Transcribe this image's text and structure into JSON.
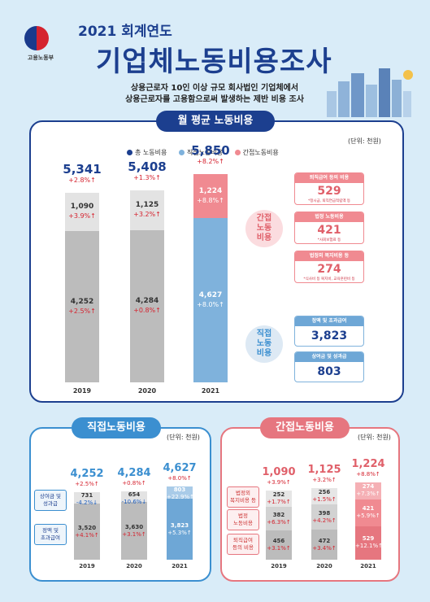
{
  "header": {
    "ministry": "고용노동부",
    "year_title": "2021 회계연도",
    "main_title": "기업체노동비용조사",
    "subtitle_line1": "상용근로자 10인 이상 규모 회사법인 기업체에서",
    "subtitle_line2": "상용근로자를 고용함으로써 발생하는 제반 비용 조사"
  },
  "colors": {
    "navy": "#1c3f8f",
    "blue": "#7fb2dc",
    "pink": "#f08a91",
    "gray": "#bcbcbc",
    "lightgray": "#e3e3e3",
    "up": "#d5232f",
    "down": "#1f5fbf"
  },
  "main_panel": {
    "tab": "월 평균 노동비용",
    "unit": "(단위: 천원)",
    "legend": {
      "total": "총 노동비용",
      "direct": "직접노동비용",
      "indirect": "간접노동비용"
    },
    "bubble_indirect": "간접\n노동\n비용",
    "bubble_direct": "직접\n노동\n비용"
  },
  "chart_data": [
    {
      "type": "bar",
      "title": "월 평균 노동비용",
      "unit": "(단위: 천원)",
      "categories": [
        "2019",
        "2020",
        "2021"
      ],
      "totals": [
        5341,
        5408,
        5850
      ],
      "total_changes": [
        "+2.8%",
        "+1.3%",
        "+8.2%"
      ],
      "series": [
        {
          "name": "직접노동비용",
          "values": [
            4252,
            4284,
            4627
          ],
          "changes": [
            "+2.5%",
            "+0.8%",
            "+8.0%"
          ]
        },
        {
          "name": "간접노동비용",
          "values": [
            1090,
            1125,
            1224
          ],
          "changes": [
            "+3.9%",
            "+3.2%",
            "+8.8%"
          ]
        }
      ],
      "breakdown_2021": {
        "indirect": [
          {
            "label": "퇴직급여 등의 비용",
            "value": "529",
            "note": "*정시금, 퇴직연금적립액 등"
          },
          {
            "label": "법정 노동비용",
            "value": "421",
            "note": "*사회보험료 등"
          },
          {
            "label": "법정외 복지비용 등",
            "value": "274",
            "note": "*식사비 등 복지비, 교육훈련비 등"
          }
        ],
        "direct": [
          {
            "label": "정액 및 초과급여",
            "value": "3,823"
          },
          {
            "label": "상여금 및 성과급",
            "value": "803"
          }
        ]
      }
    },
    {
      "type": "bar",
      "title": "직접노동비용",
      "unit": "(단위: 천원)",
      "categories": [
        "2019",
        "2020",
        "2021"
      ],
      "totals": [
        4252,
        4284,
        4627
      ],
      "total_changes": [
        "+2.5%",
        "+0.8%",
        "+8.0%"
      ],
      "series": [
        {
          "name": "정액 및 초과급여",
          "values": [
            3520,
            3630,
            3823
          ],
          "changes": [
            "+4.1%",
            "+3.1%",
            "+5.3%"
          ]
        },
        {
          "name": "상여금 및 성과급",
          "values": [
            731,
            654,
            803
          ],
          "changes": [
            "-4.2%",
            "-10.6%",
            "+22.9%"
          ]
        }
      ]
    },
    {
      "type": "bar",
      "title": "간접노동비용",
      "unit": "(단위: 천원)",
      "categories": [
        "2019",
        "2020",
        "2021"
      ],
      "totals": [
        1090,
        1125,
        1224
      ],
      "total_changes": [
        "+3.9%",
        "+3.2%",
        "+8.8%"
      ],
      "series": [
        {
          "name": "퇴직급여 등의 비용",
          "values": [
            456,
            472,
            529
          ],
          "changes": [
            "+3.1%",
            "+3.4%",
            "+12.1%"
          ]
        },
        {
          "name": "법정 노동비용",
          "values": [
            382,
            398,
            421
          ],
          "changes": [
            "+6.3%",
            "+4.2%",
            "+5.9%"
          ]
        },
        {
          "name": "법정외 복지비용 등",
          "values": [
            252,
            256,
            274
          ],
          "changes": [
            "+1.7%",
            "+1.5%",
            "+7.3%"
          ]
        }
      ]
    }
  ],
  "direct_panel": {
    "tab": "직접노동비용",
    "unit": "(단위: 천원)",
    "label_bonus": "상여금 및\n성과급",
    "label_fixed": "정액 및\n초과급여"
  },
  "indirect_panel": {
    "tab": "간접노동비용",
    "unit": "(단위: 천원)",
    "label_welfare": "법정외\n복지비용 등",
    "label_legal": "법정\n노동비용",
    "label_retire": "퇴직급여\n등의 비용"
  }
}
